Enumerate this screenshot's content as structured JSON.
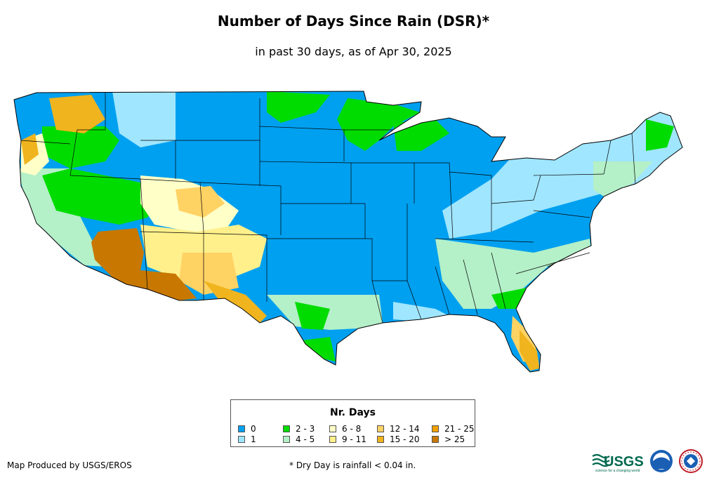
{
  "title": "Number of Days Since Rain (DSR)*",
  "subtitle": "in past 30 days, as of Apr 30, 2025",
  "legend": {
    "title": "Nr. Days",
    "items": [
      {
        "label": "0",
        "color": "#00a0f0"
      },
      {
        "label": "1",
        "color": "#a0e6ff"
      },
      {
        "label": "2 - 3",
        "color": "#00dc00"
      },
      {
        "label": "4 - 5",
        "color": "#b4f0c8"
      },
      {
        "label": "6 - 8",
        "color": "#ffffc8"
      },
      {
        "label": "9 - 11",
        "color": "#fff08c"
      },
      {
        "label": "12 - 14",
        "color": "#ffd264"
      },
      {
        "label": "15 - 20",
        "color": "#f0b41e"
      },
      {
        "label": "21 - 25",
        "color": "#f0a000"
      },
      {
        "label": "> 25",
        "color": "#c87800"
      }
    ]
  },
  "footer": {
    "credit": "Map Produced by USGS/EROS",
    "note": "* Dry Day is rainfall < 0.04 in."
  },
  "logos": {
    "usgs_text": "USGS",
    "usgs_tagline": "science for a changing world"
  }
}
